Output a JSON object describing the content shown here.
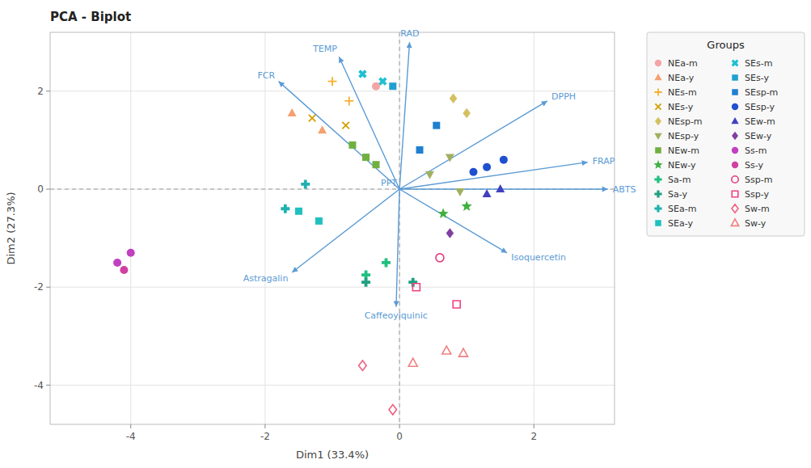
{
  "chart_data": {
    "type": "scatter",
    "title": "PCA - Biplot",
    "x_label": "Dim1 (33.4%)",
    "y_label": "Dim2 (27.3%)",
    "xlim": [
      -5.2,
      3.2
    ],
    "ylim": [
      -4.8,
      3.2
    ],
    "xticks": [
      -4,
      -2,
      0,
      2
    ],
    "yticks": [
      -4,
      -2,
      0,
      2
    ],
    "grid": true,
    "legend": "right",
    "legend_title": "Groups",
    "vector_color": "#5b9bd5",
    "vectors": [
      {
        "name": "TEMP",
        "x": -0.9,
        "y": 2.7
      },
      {
        "name": "RAD",
        "x": 0.15,
        "y": 3.0
      },
      {
        "name": "FCR",
        "x": -1.8,
        "y": 2.2
      },
      {
        "name": "DPPH",
        "x": 2.2,
        "y": 1.8
      },
      {
        "name": "FRAP",
        "x": 2.8,
        "y": 0.55
      },
      {
        "name": "ABTS",
        "x": 3.1,
        "y": 0.0
      },
      {
        "name": "PPT",
        "x": 0.0,
        "y": 0.0
      },
      {
        "name": "Astragalin",
        "x": -1.6,
        "y": -1.7
      },
      {
        "name": "Isoquercetin",
        "x": 1.6,
        "y": -1.3
      },
      {
        "name": "Caffeoyiquinic",
        "x": -0.05,
        "y": -2.4
      }
    ],
    "series": [
      {
        "name": "NEa-m",
        "color": "#f4a4a4",
        "marker": "circle",
        "x": [
          -0.35
        ],
        "values": [
          2.1
        ]
      },
      {
        "name": "NEa-y",
        "color": "#f4a070",
        "marker": "triangle-up",
        "x": [
          -1.6,
          -1.15
        ],
        "values": [
          1.55,
          1.2
        ]
      },
      {
        "name": "NEs-m",
        "color": "#f4b030",
        "marker": "plus",
        "x": [
          -1.0,
          -0.75
        ],
        "values": [
          2.2,
          1.8
        ]
      },
      {
        "name": "NEs-y",
        "color": "#d4a000",
        "marker": "x",
        "x": [
          -1.3,
          -0.8
        ],
        "values": [
          1.45,
          1.3
        ]
      },
      {
        "name": "NEsp-m",
        "color": "#d4c060",
        "marker": "diamond",
        "x": [
          0.8,
          1.0
        ],
        "values": [
          1.85,
          1.55
        ]
      },
      {
        "name": "NEsp-y",
        "color": "#a0b060",
        "marker": "triangle-down",
        "x": [
          0.75,
          0.45,
          0.9
        ],
        "values": [
          0.65,
          0.3,
          -0.05
        ]
      },
      {
        "name": "NEw-m",
        "color": "#70b040",
        "marker": "square",
        "x": [
          -0.7,
          -0.5,
          -0.35
        ],
        "values": [
          0.9,
          0.65,
          0.5
        ]
      },
      {
        "name": "NEw-y",
        "color": "#40b040",
        "marker": "star",
        "x": [
          1.0,
          0.65
        ],
        "values": [
          -0.35,
          -0.5
        ]
      },
      {
        "name": "Sa-m",
        "color": "#20c080",
        "marker": "plus-filled",
        "x": [
          -0.5,
          -0.2
        ],
        "values": [
          -1.75,
          -1.5
        ]
      },
      {
        "name": "Sa-y",
        "color": "#20a080",
        "marker": "plus-filled",
        "x": [
          -0.5,
          0.2
        ],
        "values": [
          -1.9,
          -1.9
        ]
      },
      {
        "name": "SEa-m",
        "color": "#20b0b0",
        "marker": "plus-filled",
        "x": [
          -1.4,
          -1.7
        ],
        "values": [
          0.1,
          -0.4
        ]
      },
      {
        "name": "SEa-y",
        "color": "#20c0c0",
        "marker": "square",
        "x": [
          -1.5,
          -1.2
        ],
        "values": [
          -0.45,
          -0.65
        ]
      },
      {
        "name": "SEs-m",
        "color": "#20c0d0",
        "marker": "x-filled",
        "x": [
          -0.55,
          -0.25
        ],
        "values": [
          2.35,
          2.2
        ]
      },
      {
        "name": "SEs-y",
        "color": "#20a0d0",
        "marker": "square",
        "x": [
          -0.1
        ],
        "values": [
          2.1
        ]
      },
      {
        "name": "SEsp-m",
        "color": "#2080d0",
        "marker": "square",
        "x": [
          0.55,
          0.3
        ],
        "values": [
          1.3,
          0.8
        ]
      },
      {
        "name": "SEsp-y",
        "color": "#2050d0",
        "marker": "circle",
        "x": [
          1.55,
          1.3,
          1.1
        ],
        "values": [
          0.6,
          0.45,
          0.35
        ]
      },
      {
        "name": "SEw-m",
        "color": "#4040c0",
        "marker": "triangle-up",
        "x": [
          1.5,
          1.3
        ],
        "values": [
          -0.0,
          -0.1
        ]
      },
      {
        "name": "SEw-y",
        "color": "#8040a0",
        "marker": "diamond",
        "x": [
          0.75
        ],
        "values": [
          -0.9
        ]
      },
      {
        "name": "Ss-m",
        "color": "#c040c0",
        "marker": "circle",
        "x": [
          -4.0,
          -4.2
        ],
        "values": [
          -1.3,
          -1.5
        ]
      },
      {
        "name": "Ss-y",
        "color": "#d040a0",
        "marker": "circle",
        "x": [
          -4.1
        ],
        "values": [
          -1.65
        ]
      },
      {
        "name": "Ssp-m",
        "color": "#e04080",
        "marker": "circle-open",
        "x": [
          0.6
        ],
        "values": [
          -1.4
        ]
      },
      {
        "name": "Ssp-y",
        "color": "#f04080",
        "marker": "square-open",
        "x": [
          0.25,
          0.85
        ],
        "values": [
          -2.0,
          -2.35
        ]
      },
      {
        "name": "Sw-m",
        "color": "#f06080",
        "marker": "diamond-open",
        "x": [
          -0.55,
          -0.1
        ],
        "values": [
          -3.6,
          -4.5
        ]
      },
      {
        "name": "Sw-y",
        "color": "#f08080",
        "marker": "triangle-up-open",
        "x": [
          0.7,
          0.95,
          0.2
        ],
        "values": [
          -3.3,
          -3.35,
          -3.55
        ]
      }
    ]
  }
}
